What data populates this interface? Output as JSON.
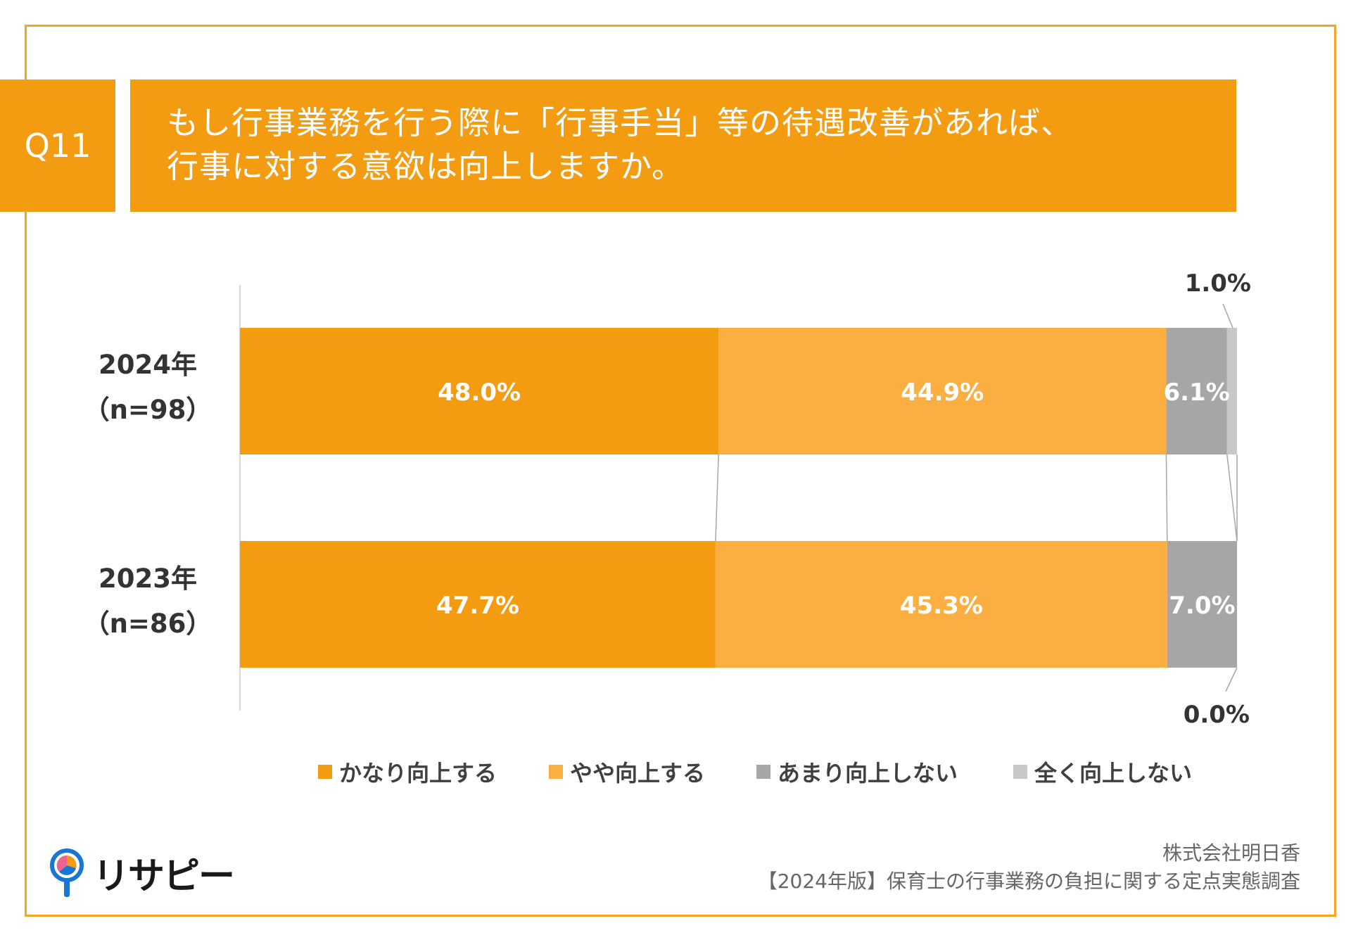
{
  "question": {
    "badge": "Q11",
    "title_line1": "もし行事業務を行う際に「行事手当」等の待遇改善があれば、",
    "title_line2": "行事に対する意欲は向上しますか。"
  },
  "colors": {
    "accent": "#F39C12",
    "frame": "#F5A524"
  },
  "chart_data": {
    "type": "bar",
    "orientation": "horizontal",
    "stacked": "100%",
    "categories": [
      {
        "line1": "2024年",
        "line2": "（n=98）"
      },
      {
        "line1": "2023年",
        "line2": "（n=86）"
      }
    ],
    "series": [
      {
        "name": "かなり向上する",
        "color": "#F39C12",
        "values": [
          48.0,
          47.7
        ],
        "labels": [
          "48.0%",
          "47.7%"
        ]
      },
      {
        "name": "やや向上する",
        "color": "#FBAE42",
        "values": [
          44.9,
          45.3
        ],
        "labels": [
          "44.9%",
          "45.3%"
        ]
      },
      {
        "name": "あまり向上しない",
        "color": "#A6A6A6",
        "values": [
          6.1,
          7.0
        ],
        "labels": [
          "6.1%",
          "7.0%"
        ]
      },
      {
        "name": "全く向上しない",
        "color": "#C8C8C8",
        "values": [
          1.0,
          0.0
        ],
        "labels": [
          "1.0%",
          "0.0%"
        ]
      }
    ],
    "legend_position": "bottom",
    "series_lines": true
  },
  "source": {
    "line1": "株式会社明日香",
    "line2": "【2024年版】保育士の行事業務の負担に関する定点実態調査"
  },
  "logo": {
    "text": "リサピー",
    "icon": "lollipop-pie-icon"
  }
}
